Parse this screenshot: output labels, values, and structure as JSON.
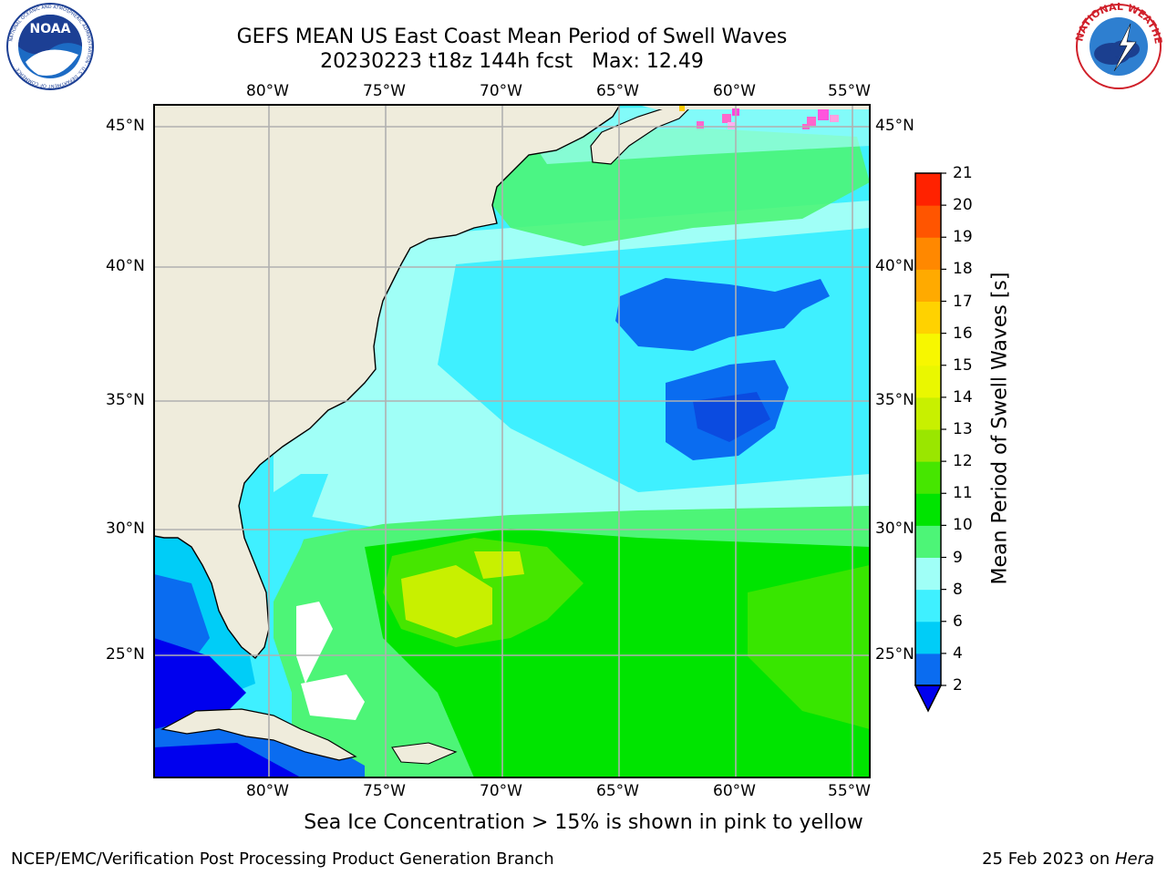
{
  "header": {
    "title_line1": "GEFS MEAN US East Coast Mean Period of Swell Waves",
    "title_line2": "20230223 t18z 144h fcst   Max: 12.49"
  },
  "logos": {
    "noaa_text": "NOAA",
    "noaa_ring_text": "NATIONAL OCEANIC AND ATMOSPHERIC ADMINISTRATION · U.S. DEPARTMENT OF COMMERCE",
    "nws_ring_text": "NATIONAL WEATHER SERVICE"
  },
  "map": {
    "lon_labels": [
      "80°W",
      "75°W",
      "70°W",
      "65°W",
      "60°W",
      "55°W"
    ],
    "lat_labels": [
      "45°N",
      "40°N",
      "35°N",
      "30°N",
      "25°N"
    ],
    "lon_range": [
      -85,
      -54.5
    ],
    "lat_range": [
      20.5,
      46
    ],
    "land_color": "#efecdc",
    "gridline_color": "#b0b0b0"
  },
  "colorbar": {
    "label": "Mean Period of Swell Waves [s]",
    "ticks": [
      "2",
      "4",
      "6",
      "8",
      "9",
      "10",
      "11",
      "12",
      "13",
      "14",
      "15",
      "16",
      "17",
      "18",
      "19",
      "20",
      "21"
    ],
    "colors": [
      "#0a6cf0",
      "#00cdf7",
      "#3ff0ff",
      "#a0fff7",
      "#4df577",
      "#00e400",
      "#46e600",
      "#9ae600",
      "#c8f000",
      "#eaf700",
      "#f7f700",
      "#ffd200",
      "#ffaa00",
      "#ff8800",
      "#ff5500",
      "#ff2200"
    ],
    "under_color": "#0000ee"
  },
  "chart_data": {
    "type": "heatmap",
    "variable": "Mean Period of Swell Waves [s]",
    "max": 12.49,
    "levels": [
      2,
      4,
      6,
      8,
      9,
      10,
      11,
      12,
      13,
      14,
      15,
      16,
      17,
      18,
      19,
      20,
      21
    ]
  },
  "footer": {
    "sea_ice_note": "Sea Ice Concentration > 15% is shown in pink to yellow",
    "branch": "NCEP/EMC/Verification Post Processing Product Generation Branch",
    "date_text": "25 Feb 2023 on ",
    "machine": "Hera"
  }
}
